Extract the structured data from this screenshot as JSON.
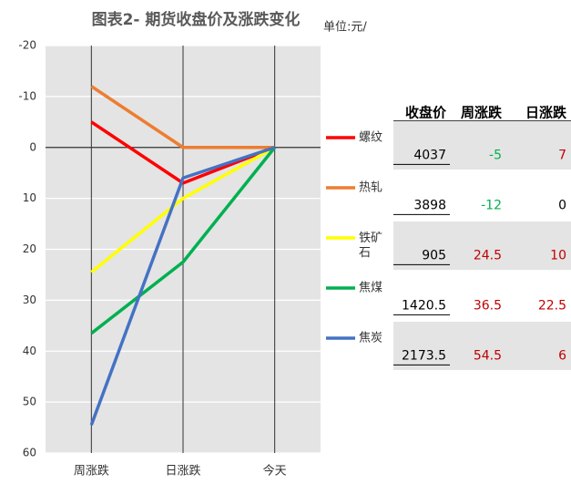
{
  "chart_data": {
    "type": "line",
    "title": "图表2- 期货收盘价及涨跌变化",
    "unit": "单位:元/",
    "categories": [
      "周涨跌",
      "日涨跌",
      "今天"
    ],
    "series": [
      {
        "name": "螺纹",
        "color": "#ff0000",
        "values": [
          -5,
          7,
          0
        ]
      },
      {
        "name": "热轧",
        "color": "#ed7d31",
        "values": [
          -12,
          0,
          0
        ]
      },
      {
        "name": "铁矿石",
        "color": "#ffff00",
        "values": [
          24.5,
          10,
          0
        ]
      },
      {
        "name": "焦煤",
        "color": "#00b050",
        "values": [
          36.5,
          22.5,
          0
        ]
      },
      {
        "name": "焦炭",
        "color": "#4472c4",
        "values": [
          54.5,
          6,
          0
        ]
      }
    ],
    "ylim": [
      -20,
      60
    ],
    "yticks": [
      -20,
      -10,
      0,
      10,
      20,
      30,
      40,
      50,
      60
    ],
    "y_inverted": true,
    "grid": true
  },
  "table": {
    "headers": [
      "收盘价",
      "周涨跌",
      "日涨跌"
    ],
    "close": [
      4037,
      3898,
      905,
      1420.5,
      2173.5
    ]
  }
}
